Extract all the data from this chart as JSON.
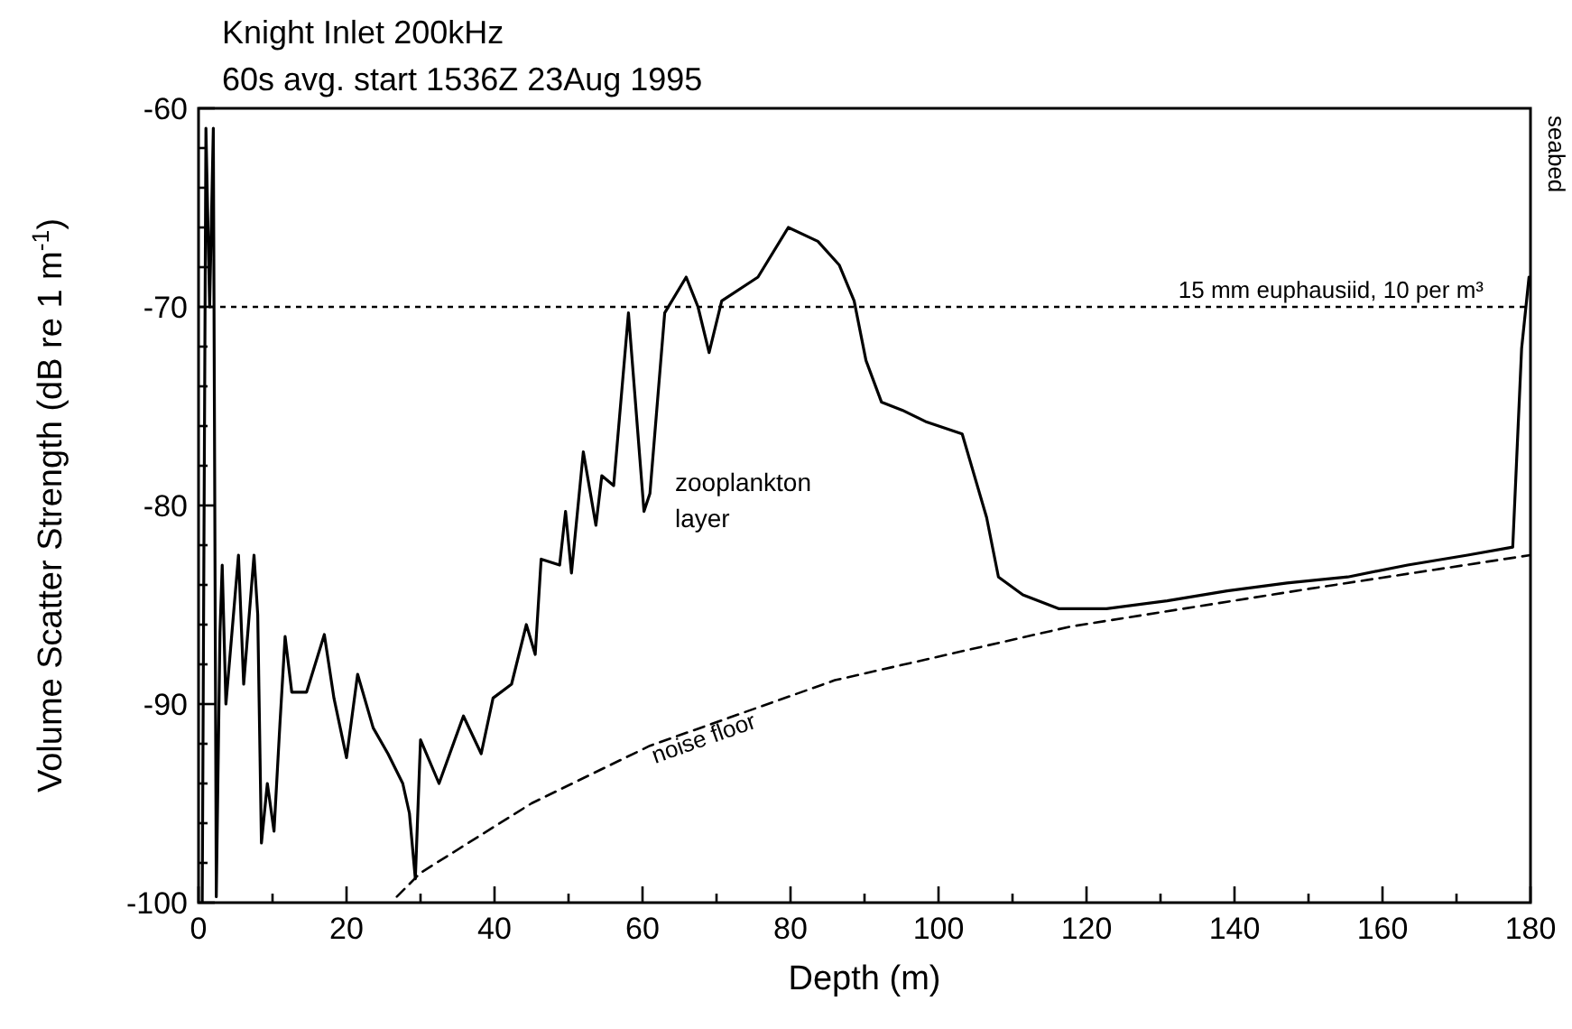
{
  "chart_data": {
    "type": "line",
    "title": "Knight Inlet 200kHz",
    "subtitle": "60s avg. start 1536Z 23Aug 1995",
    "xlabel": "Depth (m)",
    "ylabel": "Volume Scatter Strength (dB re 1 m$^{-1}$)",
    "xlim": [
      0,
      180
    ],
    "ylim": [
      -100,
      -60
    ],
    "xticks": [
      0,
      {
        "value": 10,
        "label": null
      },
      20,
      {
        "value": 30,
        "label": null
      },
      40,
      {
        "value": 50,
        "label": null
      },
      60,
      {
        "value": 70,
        "label": null
      },
      80,
      {
        "value": 90,
        "label": null
      },
      100,
      {
        "value": 110,
        "label": null
      },
      120,
      {
        "value": 130,
        "label": null
      },
      140,
      {
        "value": 150,
        "label": null
      },
      160,
      {
        "value": 170,
        "label": null
      },
      180
    ],
    "yticks": [
      -100,
      {
        "value": -98,
        "label": null
      },
      {
        "value": -96,
        "label": null
      },
      {
        "value": -94,
        "label": null
      },
      {
        "value": -92,
        "label": null
      },
      -90,
      {
        "value": -88,
        "label": null
      },
      {
        "value": -86,
        "label": null
      },
      {
        "value": -84,
        "label": null
      },
      {
        "value": -82,
        "label": null
      },
      -80,
      {
        "value": -78,
        "label": null
      },
      {
        "value": -76,
        "label": null
      },
      {
        "value": -74,
        "label": null
      },
      {
        "value": -72,
        "label": null
      },
      -70,
      {
        "value": -68,
        "label": null
      },
      {
        "value": -66,
        "label": null
      },
      {
        "value": -64,
        "label": null
      },
      {
        "value": -62,
        "label": null
      },
      -60
    ],
    "series": [
      {
        "color": "#000000",
        "x": [
          0.5,
          1,
          1.5,
          2,
          2.4,
          2.9,
          3.2,
          3.7,
          5.4,
          6.1,
          7.5,
          8,
          8.5,
          9.3,
          10.2,
          11,
          11.7,
          12.6,
          14.6,
          17,
          18.3,
          20,
          21.5,
          23.6,
          25.6,
          27.6,
          28.5,
          29.3,
          30,
          32.5,
          35.8,
          38.2,
          39.8,
          42.3,
          44.3,
          45.5,
          46.3,
          48.8,
          49.6,
          50.4,
          52,
          53.7,
          54.5,
          56.1,
          58.1,
          60.2,
          61,
          63,
          65.9,
          67.5,
          69,
          70.7,
          75.6,
          79.7,
          83.7,
          86.6,
          88.6,
          90.2,
          92.3,
          95.1,
          98.4,
          103.2,
          106.5,
          108.1,
          111.4,
          116.3,
          122.7,
          130.9,
          139,
          147.1,
          155.3,
          163.4,
          171.5,
          177.6,
          178.8,
          179.8
        ],
        "values": [
          -100,
          -61,
          -70,
          -61,
          -99.7,
          -86.4,
          -83,
          -90,
          -82.5,
          -89,
          -82.5,
          -85.5,
          -97,
          -94,
          -96.4,
          -91,
          -86.6,
          -89.4,
          -89.4,
          -86.5,
          -89.7,
          -92.7,
          -88.5,
          -91.2,
          -92.5,
          -94,
          -95.5,
          -98.8,
          -91.8,
          -94,
          -90.6,
          -92.5,
          -89.7,
          -89,
          -86,
          -87.5,
          -82.7,
          -83,
          -80.3,
          -83.4,
          -77.3,
          -81,
          -78.5,
          -79,
          -70.3,
          -80.3,
          -79.4,
          -70.3,
          -68.5,
          -70,
          -72.3,
          -69.7,
          -68.5,
          -66,
          -66.7,
          -67.9,
          -69.7,
          -72.7,
          -74.8,
          -75.2,
          -75.8,
          -76.4,
          -80.6,
          -83.6,
          -84.5,
          -85.2,
          -85.2,
          -84.8,
          -84.3,
          -83.9,
          -83.6,
          -83,
          -82.5,
          -82.1,
          -72.1,
          -68.5
        ]
      },
      {
        "name": "noise floor",
        "color": "#000000",
        "line_style": "dashed",
        "x": [
          26.8,
          30,
          45,
          61,
          86,
          117.8,
          150,
          180
        ],
        "values": [
          -99.7,
          -98.5,
          -95,
          -92.1,
          -88.8,
          -86.1,
          -84.2,
          -82.5
        ]
      }
    ],
    "ref_lines": [
      {
        "axis": "y",
        "value": -70,
        "label": "15 mm euphausiid, 10 per m³",
        "line_style": "dotted",
        "color": "#000000"
      }
    ],
    "annotations": [
      "zooplankton layer",
      "seabed"
    ]
  }
}
